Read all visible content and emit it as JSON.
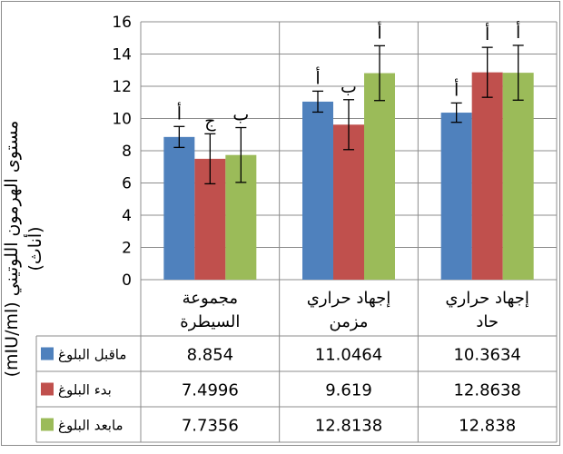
{
  "chart_data": {
    "type": "bar",
    "ylabel_line1": "مستوى الهرمون اللوتيني (mIU/ml)",
    "ylabel_line2": "(أناث)",
    "ylim": [
      0,
      16
    ],
    "yticks": [
      "0",
      "2",
      "4",
      "6",
      "8",
      "10",
      "12",
      "14",
      "16"
    ],
    "grid": true,
    "legend": "data-table-left",
    "categories": [
      {
        "line1": "مجموعة",
        "line2": "السيطرة"
      },
      {
        "line1": "إجهاد حراري",
        "line2": "مزمن"
      },
      {
        "line1": "إجهاد حراري",
        "line2": "حاد"
      }
    ],
    "series": [
      {
        "name": "ماقبل البلوغ",
        "color": "#4f81bd",
        "values": [
          8.854,
          11.0464,
          10.3634
        ],
        "value_labels": [
          "8.854",
          "11.0464",
          "10.3634"
        ],
        "errors": [
          0.65,
          0.65,
          0.6
        ],
        "letters": [
          "أ",
          "أ",
          "أ"
        ]
      },
      {
        "name": "بدء البلوغ",
        "color": "#c0504d",
        "values": [
          7.4996,
          9.619,
          12.8638
        ],
        "value_labels": [
          "7.4996",
          "9.619",
          "12.8638"
        ],
        "errors": [
          1.55,
          1.55,
          1.55
        ],
        "letters": [
          "ج",
          "ب",
          "أ"
        ]
      },
      {
        "name": "مابعد البلوغ",
        "color": "#9bbb59",
        "values": [
          7.7356,
          12.8138,
          12.838
        ],
        "value_labels": [
          "7.7356",
          "12.8138",
          "12.838"
        ],
        "errors": [
          1.7,
          1.7,
          1.7
        ],
        "letters": [
          "ب",
          "أ",
          "أ"
        ]
      }
    ]
  }
}
